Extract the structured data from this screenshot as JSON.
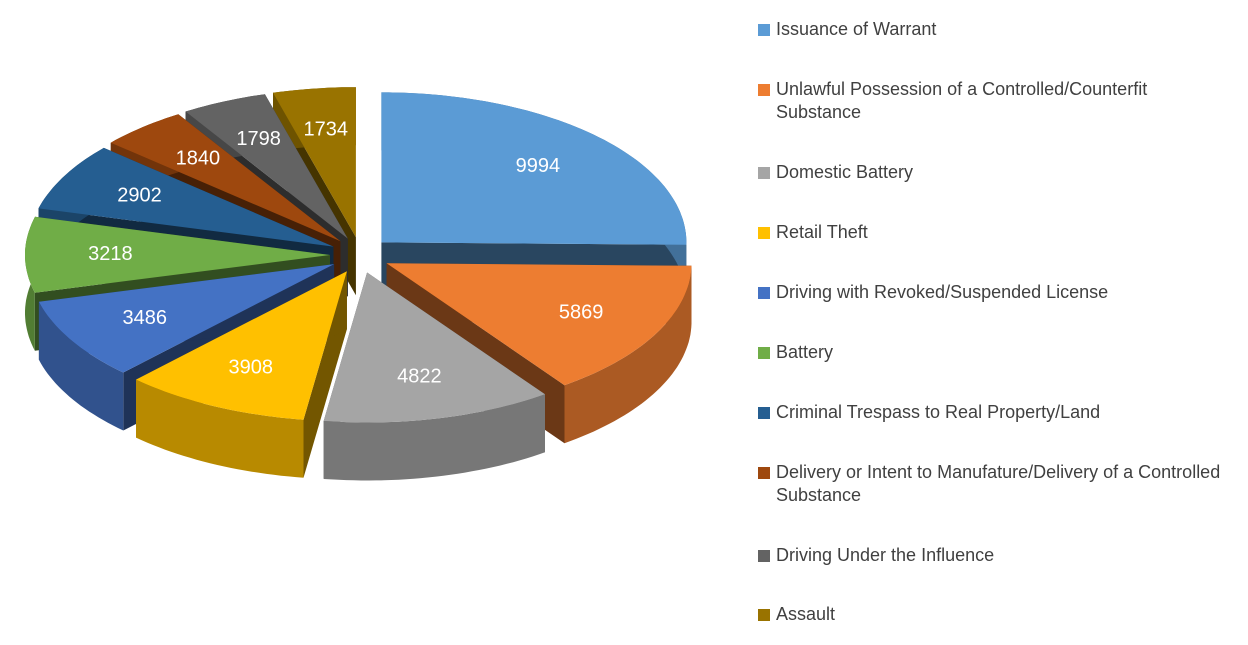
{
  "chart_data": {
    "type": "pie3d",
    "categories": [
      "Issuance of Warrant",
      "Unlawful Possession of a Controlled/Counterfit Substance",
      "Domestic Battery",
      "Retail Theft",
      "Driving with Revoked/Suspended License",
      "Battery",
      "Criminal Trespass to Real Property/Land",
      "Delivery or Intent to Manufature/Delivery of a Controlled Substance",
      "Driving Under the Influence",
      "Assault"
    ],
    "values": [
      9994,
      5869,
      4822,
      3908,
      3486,
      3218,
      2902,
      1840,
      1798,
      1734
    ],
    "colors": [
      "#5b9bd5",
      "#ed7d31",
      "#a5a5a5",
      "#ffc000",
      "#4472c4",
      "#70ad47",
      "#255e91",
      "#9e480e",
      "#636363",
      "#997300"
    ],
    "legend": "right"
  }
}
